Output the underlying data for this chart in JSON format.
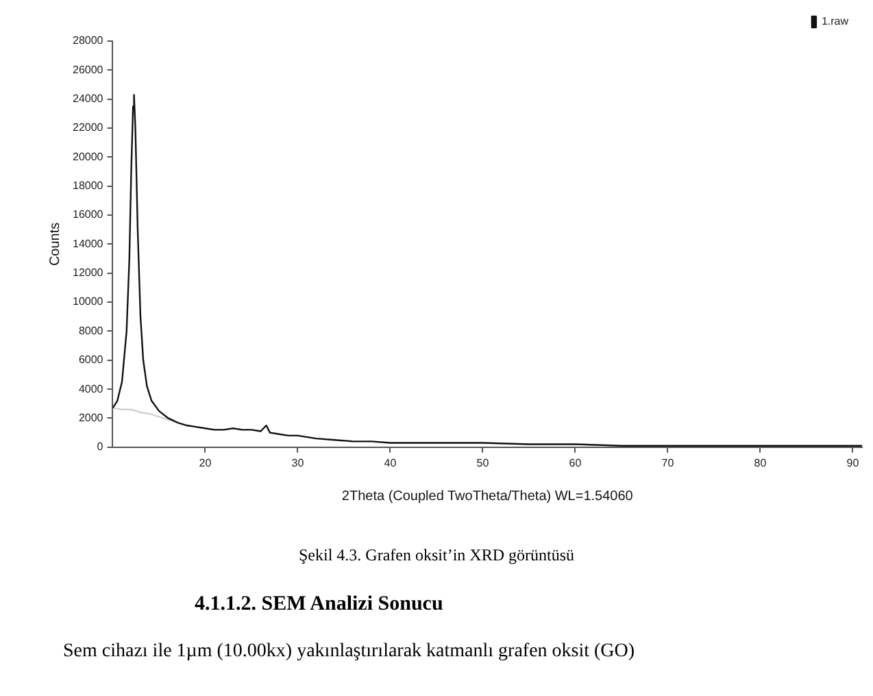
{
  "chart_data": {
    "type": "line",
    "xlabel": "2Theta (Coupled TwoTheta/Theta) WL=1.54060",
    "ylabel": "Counts",
    "annotations": [
      "Şekil 4.3. Grafen oksit’in XRD görüntüsü",
      "4.1.1.2.  SEM Analizi Sonucu",
      "Sem cihazı ile 1µm (10.00kx) yakınlaştırılarak katmanlı grafen oksit (GO)"
    ],
    "xlim": [
      10,
      91
    ],
    "xticks": [
      20,
      30,
      40,
      50,
      60,
      70,
      80,
      90
    ],
    "ylim": [
      0,
      28000
    ],
    "yticks": [
      0,
      2000,
      4000,
      6000,
      8000,
      10000,
      12000,
      14000,
      16000,
      18000,
      20000,
      22000,
      24000,
      26000,
      28000
    ],
    "grid": false,
    "legend": "top right",
    "marker": "none",
    "line_style": "solid",
    "series": [
      {
        "name": "1.raw",
        "color": "#111111",
        "x": [
          10,
          10.5,
          11,
          11.5,
          11.8,
          12,
          12.2,
          12.3,
          12.45,
          12.7,
          13,
          13.3,
          13.7,
          14.2,
          15,
          16,
          17,
          18,
          19,
          20,
          21,
          22,
          23,
          24,
          25,
          26,
          26.6,
          27,
          28,
          29,
          30,
          32,
          34,
          36,
          38,
          40,
          45,
          50,
          55,
          60,
          65,
          70,
          75,
          80,
          85,
          91
        ],
        "values": [
          2700,
          3200,
          4500,
          8000,
          13000,
          19000,
          23500,
          24300,
          22000,
          15000,
          9000,
          6000,
          4200,
          3200,
          2500,
          2000,
          1700,
          1500,
          1400,
          1300,
          1200,
          1200,
          1300,
          1200,
          1200,
          1100,
          1500,
          1000,
          900,
          800,
          800,
          600,
          500,
          400,
          400,
          300,
          300,
          300,
          200,
          200,
          100,
          100,
          100,
          100,
          100,
          100
        ]
      },
      {
        "color": "#c8c8c8",
        "x": [
          10,
          11,
          12,
          13,
          14,
          15,
          16,
          17
        ],
        "values": [
          2700,
          2600,
          2600,
          2400,
          2300,
          2100,
          1900,
          1700
        ]
      }
    ]
  }
}
